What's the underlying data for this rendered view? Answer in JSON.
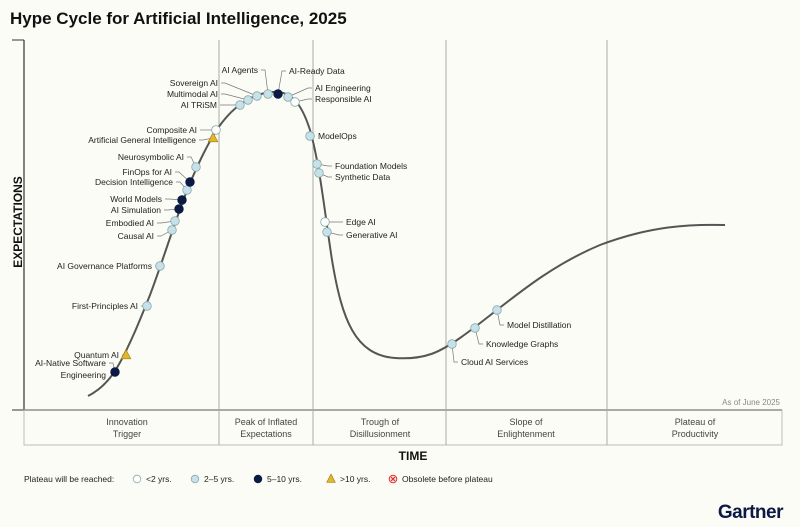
{
  "title": "Hype Cycle for Artificial Intelligence, 2025",
  "y_axis_label": "EXPECTATIONS",
  "x_axis_label": "TIME",
  "as_of": "As of June 2025",
  "phases": [
    {
      "line1": "Innovation",
      "line2": "Trigger"
    },
    {
      "line1": "Peak of Inflated",
      "line2": "Expectations"
    },
    {
      "line1": "Trough of",
      "line2": "Disillusionment"
    },
    {
      "line1": "Slope of",
      "line2": "Enlightenment"
    },
    {
      "line1": "Plateau of",
      "line2": "Productivity"
    }
  ],
  "legend": {
    "title": "Plateau will be reached:",
    "items": [
      {
        "key": "lt2",
        "label": "<2 yrs."
      },
      {
        "key": "2to5",
        "label": "2–5 yrs."
      },
      {
        "key": "5to10",
        "label": "5–10 yrs."
      },
      {
        "key": "gt10",
        "label": ">10 yrs."
      },
      {
        "key": "obsolete",
        "label": "Obsolete before plateau"
      }
    ]
  },
  "colors": {
    "lt2": "#ffffff",
    "2to5": "#c7e1ea",
    "5to10": "#0b1a45",
    "gt10": "#e4b62c",
    "obsolete": "#d9342b",
    "curve": "#555555"
  },
  "technologies": [
    {
      "name": "AI-Native Software Engineering",
      "plateau": "5to10",
      "phase": "Innovation Trigger"
    },
    {
      "name": "Quantum AI",
      "plateau": "gt10",
      "phase": "Innovation Trigger"
    },
    {
      "name": "First-Principles AI",
      "plateau": "2to5",
      "phase": "Innovation Trigger"
    },
    {
      "name": "AI Governance Platforms",
      "plateau": "2to5",
      "phase": "Innovation Trigger"
    },
    {
      "name": "Causal AI",
      "plateau": "2to5",
      "phase": "Innovation Trigger"
    },
    {
      "name": "Embodied AI",
      "plateau": "2to5",
      "phase": "Innovation Trigger"
    },
    {
      "name": "AI Simulation",
      "plateau": "5to10",
      "phase": "Innovation Trigger"
    },
    {
      "name": "World Models",
      "plateau": "5to10",
      "phase": "Innovation Trigger"
    },
    {
      "name": "Decision Intelligence",
      "plateau": "2to5",
      "phase": "Innovation Trigger"
    },
    {
      "name": "FinOps for AI",
      "plateau": "5to10",
      "phase": "Innovation Trigger"
    },
    {
      "name": "Neurosymbolic AI",
      "plateau": "2to5",
      "phase": "Innovation Trigger"
    },
    {
      "name": "Artificial General Intelligence",
      "plateau": "gt10",
      "phase": "Innovation Trigger"
    },
    {
      "name": "Composite AI",
      "plateau": "lt2",
      "phase": "Innovation Trigger"
    },
    {
      "name": "AI TRiSM",
      "plateau": "2to5",
      "phase": "Peak of Inflated Expectations"
    },
    {
      "name": "Multimodal AI",
      "plateau": "2to5",
      "phase": "Peak of Inflated Expectations"
    },
    {
      "name": "Sovereign AI",
      "plateau": "2to5",
      "phase": "Peak of Inflated Expectations"
    },
    {
      "name": "AI Agents",
      "plateau": "2to5",
      "phase": "Peak of Inflated Expectations"
    },
    {
      "name": "AI-Ready Data",
      "plateau": "5to10",
      "phase": "Peak of Inflated Expectations"
    },
    {
      "name": "AI Engineering",
      "plateau": "2to5",
      "phase": "Peak of Inflated Expectations"
    },
    {
      "name": "Responsible AI",
      "plateau": "lt2",
      "phase": "Peak of Inflated Expectations"
    },
    {
      "name": "ModelOps",
      "plateau": "2to5",
      "phase": "Trough of Disillusionment"
    },
    {
      "name": "Foundation Models",
      "plateau": "2to5",
      "phase": "Trough of Disillusionment"
    },
    {
      "name": "Synthetic Data",
      "plateau": "2to5",
      "phase": "Trough of Disillusionment"
    },
    {
      "name": "Edge AI",
      "plateau": "lt2",
      "phase": "Trough of Disillusionment"
    },
    {
      "name": "Generative AI",
      "plateau": "2to5",
      "phase": "Trough of Disillusionment"
    },
    {
      "name": "Cloud AI Services",
      "plateau": "2to5",
      "phase": "Slope of Enlightenment"
    },
    {
      "name": "Knowledge Graphs",
      "plateau": "2to5",
      "phase": "Slope of Enlightenment"
    },
    {
      "name": "Model Distillation",
      "plateau": "2to5",
      "phase": "Slope of Enlightenment"
    }
  ],
  "logo": "Gartner"
}
